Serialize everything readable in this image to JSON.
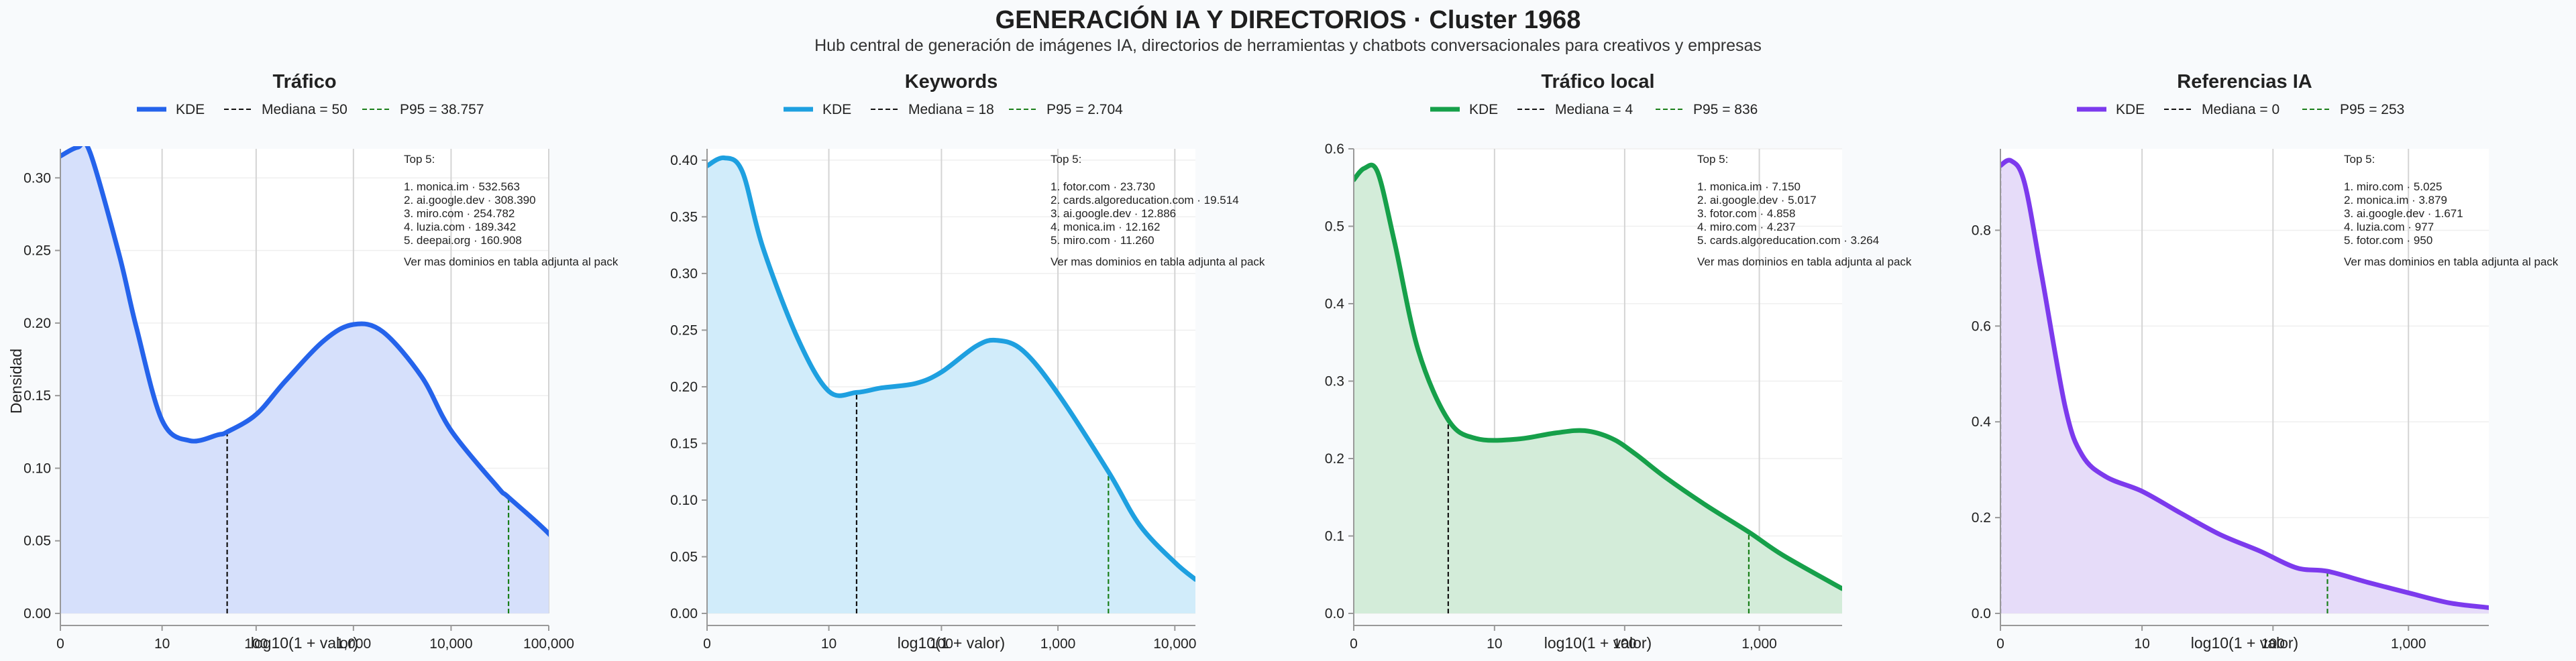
{
  "header": {
    "title": "GENERACIÓN IA Y DIRECTORIOS · Cluster 1968",
    "subtitle": "Hub central de generación de imágenes IA, directorios de herramientas y chatbots conversacionales para creativos y empresas"
  },
  "colors": {
    "median_line": "#111111",
    "p95_line": "#1a7f1a",
    "grid": "#d4d4d4",
    "axis": "#999999"
  },
  "chart_data": [
    {
      "type": "area",
      "title": "Tráfico",
      "xlabel": "log10(1 + valor)",
      "ylabel": "Densidad",
      "x_scale": "log10(1+x)",
      "xlim": [
        0,
        100000
      ],
      "x_ticks": [
        0,
        10,
        100,
        1000,
        10000,
        100000
      ],
      "x_tick_labels": [
        "0",
        "10",
        "100",
        "1,000",
        "10,000",
        "100,000"
      ],
      "ylim": [
        0,
        0.32
      ],
      "y_ticks": [
        0,
        0.05,
        0.1,
        0.15,
        0.2,
        0.25,
        0.3
      ],
      "y_tick_labels": [
        "0.00",
        "0.05",
        "0.10",
        "0.15",
        "0.20",
        "0.25",
        "0.30"
      ],
      "color": "#2563eb",
      "fill": "#d6e0fb",
      "legend": {
        "kde": "KDE",
        "median": "Mediana = 50",
        "p95": "P95 = 38.757"
      },
      "median": 50,
      "p95": 38757,
      "series": [
        {
          "name": "KDE",
          "x": [
            0,
            0.5,
            1,
            3,
            5,
            10,
            20,
            40,
            50,
            100,
            200,
            500,
            1000,
            2000,
            5000,
            10000,
            30000,
            38757,
            100000,
            200000
          ],
          "y": [
            0.315,
            0.321,
            0.318,
            0.247,
            0.197,
            0.133,
            0.119,
            0.123,
            0.125,
            0.137,
            0.16,
            0.188,
            0.199,
            0.194,
            0.163,
            0.126,
            0.087,
            0.08,
            0.055,
            0.031
          ]
        }
      ],
      "top5": {
        "heading": "Top 5:",
        "items": [
          "1. monica.im · 532.563",
          "2. ai.google.dev · 308.390",
          "3. miro.com · 254.782",
          "4. luzia.com · 189.342",
          "5. deepai.org · 160.908"
        ],
        "footer": "Ver mas dominios en tabla adjunta al pack"
      }
    },
    {
      "type": "area",
      "title": "Keywords",
      "xlabel": "log10(1 + valor)",
      "x_scale": "log10(1+x)",
      "xlim": [
        0,
        15000
      ],
      "x_ticks": [
        0,
        10,
        100,
        1000,
        10000
      ],
      "x_tick_labels": [
        "0",
        "10",
        "100",
        "1,000",
        "10,000"
      ],
      "ylim": [
        0,
        0.41
      ],
      "y_ticks": [
        0,
        0.05,
        0.1,
        0.15,
        0.2,
        0.25,
        0.3,
        0.35,
        0.4
      ],
      "y_tick_labels": [
        "0.00",
        "0.05",
        "0.10",
        "0.15",
        "0.20",
        "0.25",
        "0.30",
        "0.35",
        "0.40"
      ],
      "color": "#1ea0e0",
      "fill": "#d1ecfa",
      "legend": {
        "kde": "KDE",
        "median": "Mediana = 18",
        "p95": "P95 = 2.704"
      },
      "median": 18,
      "p95": 2704,
      "series": [
        {
          "name": "KDE",
          "x": [
            0,
            0.4,
            1,
            2,
            5,
            10,
            18,
            30,
            60,
            100,
            200,
            300,
            500,
            1000,
            2704,
            5000,
            10000,
            15000
          ],
          "y": [
            0.395,
            0.402,
            0.39,
            0.323,
            0.242,
            0.196,
            0.195,
            0.199,
            0.203,
            0.213,
            0.236,
            0.241,
            0.232,
            0.194,
            0.125,
            0.078,
            0.045,
            0.03
          ]
        }
      ],
      "top5": {
        "heading": "Top 5:",
        "items": [
          "1. fotor.com · 23.730",
          "2. cards.algoreducation.com · 19.514",
          "3. ai.google.dev · 12.886",
          "4. monica.im · 12.162",
          "5. miro.com · 11.260"
        ],
        "footer": "Ver mas dominios en tabla adjunta al pack"
      }
    },
    {
      "type": "area",
      "title": "Tráfico local",
      "xlabel": "log10(1 + valor)",
      "x_scale": "log10(1+x)",
      "xlim": [
        0,
        4100
      ],
      "x_ticks": [
        0,
        10,
        100,
        1000
      ],
      "x_tick_labels": [
        "0",
        "10",
        "100",
        "1,000"
      ],
      "ylim": [
        0,
        0.6
      ],
      "y_ticks": [
        0,
        0.1,
        0.2,
        0.3,
        0.4,
        0.5,
        0.6
      ],
      "y_tick_labels": [
        "0.0",
        "0.1",
        "0.2",
        "0.3",
        "0.4",
        "0.5",
        "0.6"
      ],
      "color": "#16a04a",
      "fill": "#d3ecd9",
      "legend": {
        "kde": "KDE",
        "median": "Mediana = 4",
        "p95": "P95 = 836"
      },
      "median": 4,
      "p95": 836,
      "series": [
        {
          "name": "KDE",
          "x": [
            0,
            0.2,
            0.5,
            1,
            2,
            4,
            7,
            15,
            30,
            50,
            80,
            120,
            200,
            400,
            836,
            1500,
            4100
          ],
          "y": [
            0.56,
            0.575,
            0.57,
            0.48,
            0.34,
            0.25,
            0.226,
            0.225,
            0.233,
            0.236,
            0.226,
            0.206,
            0.176,
            0.14,
            0.105,
            0.075,
            0.032
          ]
        }
      ],
      "top5": {
        "heading": "Top 5:",
        "items": [
          "1. monica.im · 7.150",
          "2. ai.google.dev · 5.017",
          "3. fotor.com · 4.858",
          "4. miro.com · 4.237",
          "5. cards.algoreducation.com · 3.264"
        ],
        "footer": "Ver mas dominios en tabla adjunta al pack"
      }
    },
    {
      "type": "area",
      "title": "Referencias IA",
      "xlabel": "log10(1 + valor)",
      "x_scale": "log10(1+x)",
      "xlim": [
        0,
        3900
      ],
      "x_ticks": [
        0,
        10,
        100,
        1000
      ],
      "x_tick_labels": [
        "0",
        "10",
        "100",
        "1,000"
      ],
      "ylim": [
        0,
        0.97
      ],
      "y_ticks": [
        0,
        0.2,
        0.4,
        0.6,
        0.8
      ],
      "y_tick_labels": [
        "0.0",
        "0.2",
        "0.4",
        "0.6",
        "0.8"
      ],
      "color": "#7c3aed",
      "fill": "#e6dcf9",
      "legend": {
        "kde": "KDE",
        "median": "Mediana = 0",
        "p95": "P95 = 253"
      },
      "median": 0,
      "p95": 253,
      "series": [
        {
          "name": "KDE",
          "x": [
            0,
            0.2,
            0.5,
            1,
            2,
            3,
            5,
            10,
            20,
            40,
            80,
            150,
            253,
            500,
            1000,
            2000,
            3900
          ],
          "y": [
            0.935,
            0.945,
            0.9,
            0.71,
            0.43,
            0.33,
            0.285,
            0.255,
            0.21,
            0.165,
            0.13,
            0.095,
            0.088,
            0.065,
            0.043,
            0.022,
            0.012
          ]
        }
      ],
      "top5": {
        "heading": "Top 5:",
        "items": [
          "1. miro.com · 5.025",
          "2. monica.im · 3.879",
          "3. ai.google.dev · 1.671",
          "4. luzia.com · 977",
          "5. fotor.com · 950"
        ],
        "footer": "Ver mas dominios en tabla adjunta al pack"
      }
    }
  ]
}
